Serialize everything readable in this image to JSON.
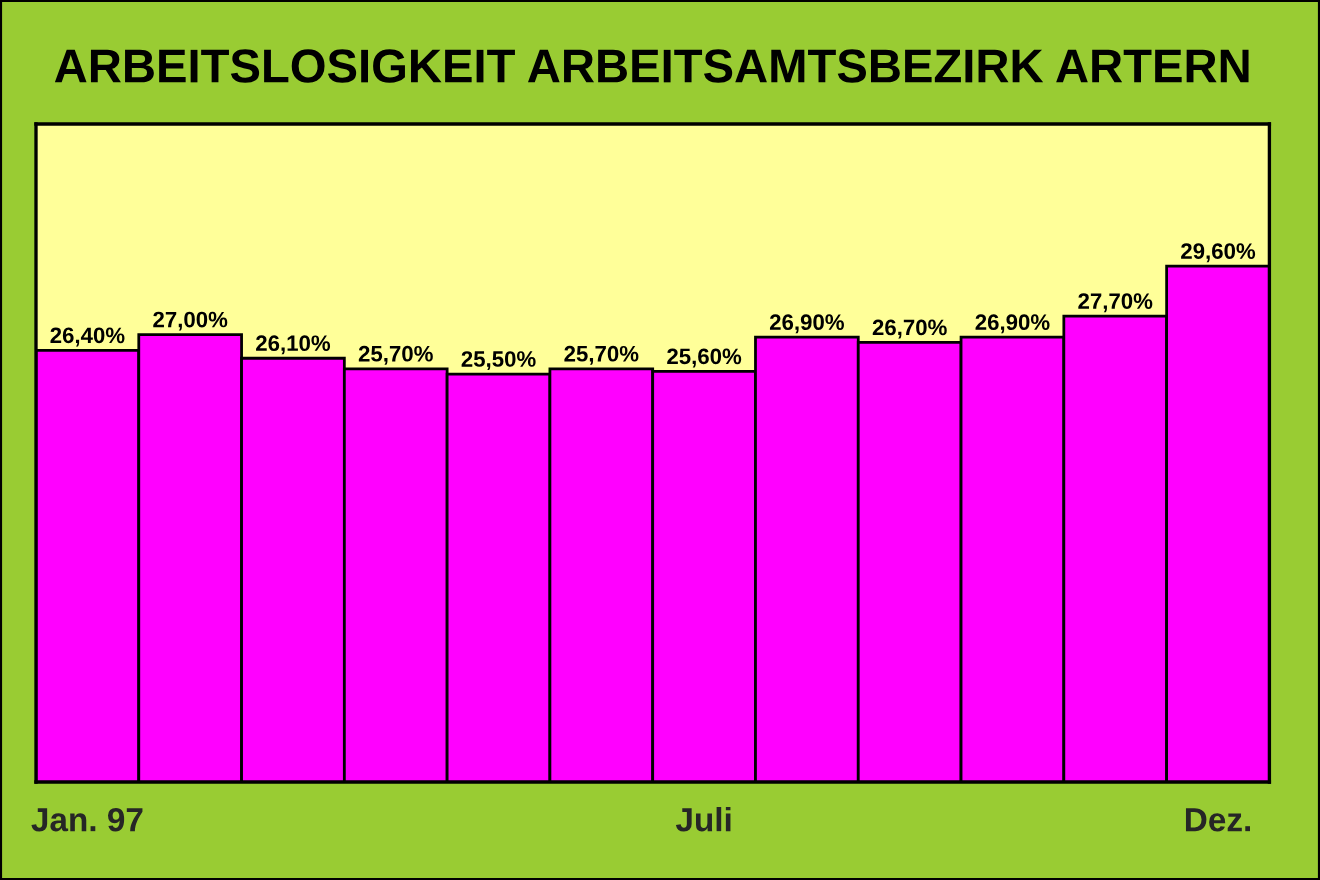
{
  "chart_data": {
    "type": "bar",
    "title": "ARBEITSLOSIGKEIT ARBEITSAMTSBEZIRK ARTERN",
    "categories": [
      "Jan. 97",
      null,
      null,
      null,
      null,
      null,
      "Juli",
      null,
      null,
      null,
      null,
      "Dez."
    ],
    "values": [
      26.4,
      27.0,
      26.1,
      25.7,
      25.5,
      25.7,
      25.6,
      26.9,
      26.7,
      26.9,
      27.7,
      29.6
    ],
    "value_labels": [
      "26,40%",
      "27,00%",
      "26,10%",
      "25,70%",
      "25,50%",
      "25,70%",
      "25,60%",
      "26,90%",
      "26,70%",
      "26,90%",
      "27,70%",
      "29,60%"
    ],
    "color": "#ff00ff",
    "ylim": [
      10,
      35
    ],
    "tick_labels": "x"
  }
}
